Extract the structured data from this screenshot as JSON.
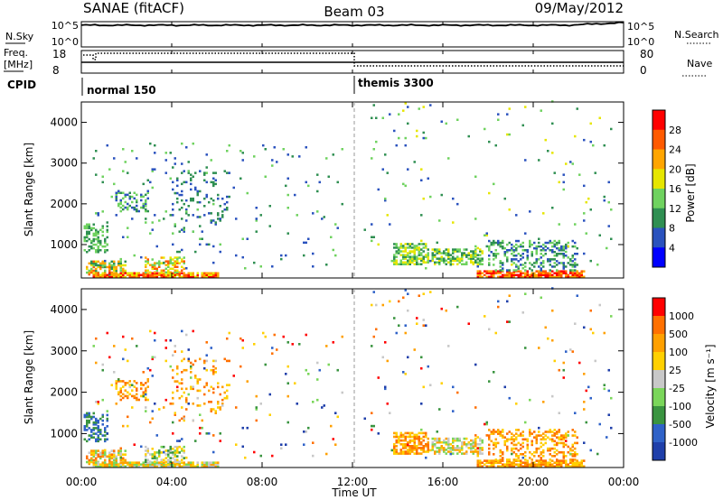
{
  "header": {
    "station": "SANAE (fitACF)",
    "beam": "Beam 03",
    "date": "09/May/2012"
  },
  "strip": {
    "nsky_label": "N.Sky",
    "nsearch_label": "N.Search",
    "nsky_ticks": [
      "10^5",
      "10^0"
    ],
    "nsearch_ticks": [
      "10^5",
      "10^0"
    ],
    "freq_label": "Freq.",
    "freq_unit": "[MHz]",
    "freq_ticks": [
      "18",
      "8"
    ],
    "nave_label": "Nave",
    "nave_ticks": [
      "80",
      "0"
    ],
    "cpid_label": "CPID",
    "modes": [
      "normal 150",
      "themis 3300"
    ]
  },
  "axes": {
    "x_ticks": [
      "00:00",
      "04:00",
      "08:00",
      "12:00",
      "16:00",
      "20:00",
      "00:00"
    ],
    "x_label": "Time UT",
    "y_label": "Slant Range [km]",
    "y_ticks": [
      "4000",
      "3000",
      "2000",
      "1000"
    ]
  },
  "power_scale": {
    "label": "Power [dB]",
    "ticks": [
      "28",
      "24",
      "20",
      "16",
      "12",
      "8",
      "4"
    ]
  },
  "velocity_scale": {
    "label": "Velocity [m s⁻¹]",
    "ticks": [
      "1000",
      "500",
      "100",
      "25",
      "-25",
      "-100",
      "-500",
      "-1000"
    ]
  },
  "chart_data": {
    "type": "heatmap",
    "panels": [
      "Power [dB]",
      "Velocity [m s-1]"
    ],
    "x_range_hours_ut": [
      0,
      24
    ],
    "y_range_km": [
      180,
      4500
    ],
    "mode_switch_hour": 12.0,
    "power_colors": [
      "#0000ff",
      "#2a52be",
      "#2f8f52",
      "#6fd25f",
      "#e6e600",
      "#ffa500",
      "#ff5a00",
      "#ff0000"
    ],
    "velocity_colors": [
      "#1f3faa",
      "#2f62c8",
      "#3a9440",
      "#7ad65a",
      "#c8c8c8",
      "#ffd000",
      "#ffa000",
      "#ff7000",
      "#ff0000"
    ],
    "blobs": [
      {
        "t": [
          0.1,
          1.2
        ],
        "r": [
          800,
          1500
        ],
        "d": 0.45,
        "p": [
          2,
          3
        ],
        "v": [
          1,
          2
        ]
      },
      {
        "t": [
          0.2,
          2.0
        ],
        "r": [
          250,
          600
        ],
        "d": 0.6,
        "p": [
          2,
          6
        ],
        "v": [
          3,
          7
        ]
      },
      {
        "t": [
          0.5,
          6.0
        ],
        "r": [
          190,
          300
        ],
        "d": 0.85,
        "p": [
          4,
          7
        ],
        "v": [
          3,
          6
        ]
      },
      {
        "t": [
          1.5,
          3.0
        ],
        "r": [
          1800,
          2300
        ],
        "d": 0.35,
        "p": [
          1,
          3
        ],
        "v": [
          5,
          7
        ]
      },
      {
        "t": [
          2.8,
          4.5
        ],
        "r": [
          300,
          700
        ],
        "d": 0.5,
        "p": [
          3,
          6
        ],
        "v": [
          2,
          5
        ]
      },
      {
        "t": [
          4.0,
          6.5
        ],
        "r": [
          1300,
          2800
        ],
        "d": 0.12,
        "p": [
          1,
          2
        ],
        "v": [
          5,
          7
        ]
      },
      {
        "t": [
          0.5,
          11.5
        ],
        "r": [
          400,
          3500
        ],
        "d": 0.025,
        "p": [
          1,
          3
        ],
        "v": [
          0,
          8
        ]
      },
      {
        "t": [
          13.8,
          15.3
        ],
        "r": [
          500,
          1000
        ],
        "d": 0.65,
        "p": [
          2,
          4
        ],
        "v": [
          5,
          7
        ]
      },
      {
        "t": [
          15.5,
          17.8
        ],
        "r": [
          500,
          900
        ],
        "d": 0.55,
        "p": [
          2,
          4
        ],
        "v": [
          3,
          6
        ]
      },
      {
        "t": [
          17.5,
          22.3
        ],
        "r": [
          190,
          350
        ],
        "d": 0.8,
        "p": [
          5,
          7
        ],
        "v": [
          5,
          7
        ]
      },
      {
        "t": [
          18.0,
          22.0
        ],
        "r": [
          350,
          1100
        ],
        "d": 0.35,
        "p": [
          1,
          3
        ],
        "v": [
          5,
          7
        ]
      },
      {
        "t": [
          12.5,
          23.5
        ],
        "r": [
          400,
          4500
        ],
        "d": 0.015,
        "p": [
          1,
          4
        ],
        "v": [
          0,
          8
        ]
      }
    ]
  }
}
